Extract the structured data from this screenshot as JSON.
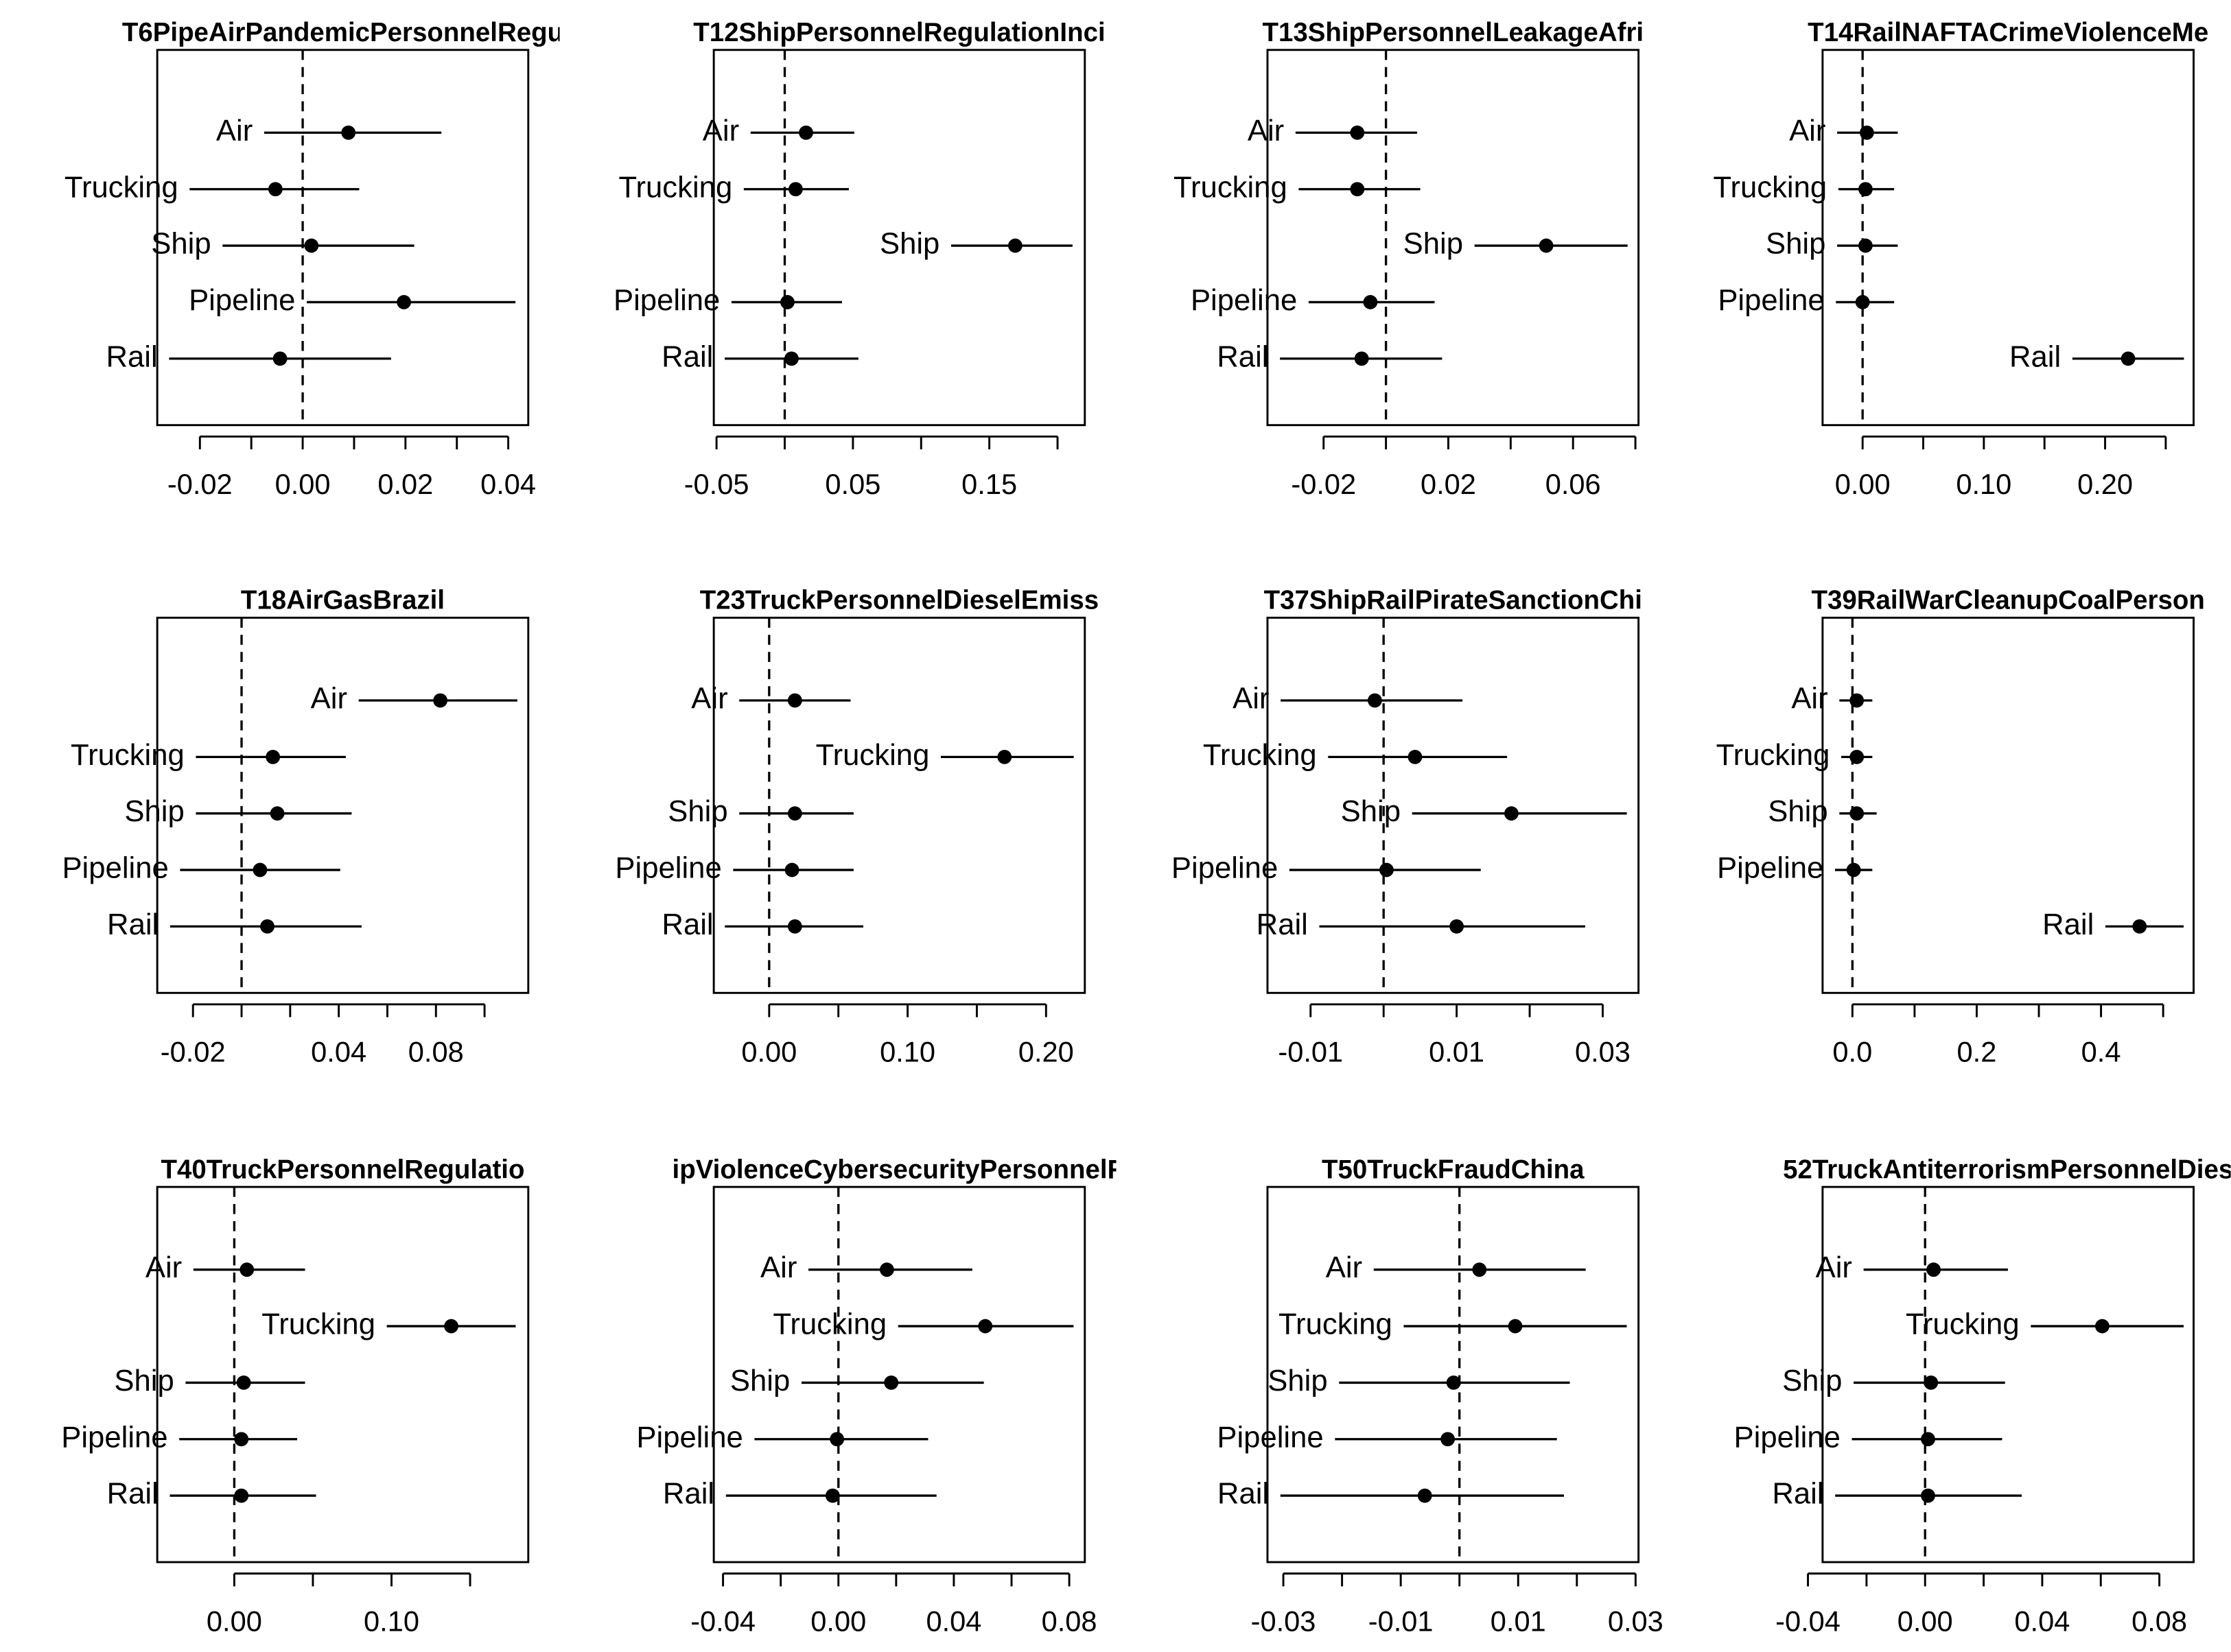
{
  "chart_data": [
    {
      "type": "dot",
      "title": "T6PipeAirPandemicPersonnelRegu",
      "categories": [
        "Air",
        "Trucking",
        "Ship",
        "Pipeline",
        "Rail"
      ],
      "values": [
        0.0089,
        -0.0053,
        0.0017,
        0.0197,
        -0.0044
      ],
      "ci_low": [
        -0.0075,
        -0.022,
        -0.0156,
        0.0008,
        -0.026
      ],
      "ci_high": [
        0.027,
        0.011,
        0.0217,
        0.0414,
        0.0172
      ],
      "xlim": [
        -0.0283,
        0.0439
      ],
      "xticks": [
        -0.02,
        {
          "value": 0,
          "label": "0.00"
        },
        0.02,
        0.04
      ],
      "xminorticks": [
        -0.01,
        0.01,
        0.03
      ],
      "reference_line": 0,
      "color": "#000000"
    },
    {
      "type": "dot",
      "title": "T12ShipPersonnelRegulationInci",
      "categories": [
        "Air",
        "Trucking",
        "Ship",
        "Pipeline",
        "Rail"
      ],
      "values": [
        0.0156,
        0.008,
        0.169,
        0.002,
        0.005
      ],
      "ci_low": [
        -0.025,
        -0.03,
        0.122,
        -0.039,
        -0.044
      ],
      "ci_high": [
        0.051,
        0.047,
        0.211,
        0.042,
        0.054
      ],
      "xlim": [
        -0.052,
        0.22
      ],
      "xticks": [
        -0.05,
        0.05,
        0.15
      ],
      "xminorticks": [
        0,
        0.1,
        0.2
      ],
      "reference_line": 0,
      "color": "#000000"
    },
    {
      "type": "dot",
      "title": "T13ShipPersonnelLeakageAfri",
      "categories": [
        "Air",
        "Trucking",
        "Ship",
        "Pipeline",
        "Rail"
      ],
      "values": [
        -0.0092,
        -0.0092,
        0.0514,
        -0.005,
        -0.0078
      ],
      "ci_low": [
        -0.029,
        -0.028,
        0.0284,
        -0.0248,
        -0.034
      ],
      "ci_high": [
        0.01,
        0.011,
        0.0775,
        0.0156,
        0.018
      ],
      "xlim": [
        -0.038,
        0.081
      ],
      "xticks": [
        -0.02,
        0.02,
        0.06
      ],
      "xminorticks": [
        0,
        0.04,
        0.08
      ],
      "reference_line": 0,
      "color": "#000000"
    },
    {
      "type": "dot",
      "title": "T14RailNAFTACrimeViolenceMe",
      "categories": [
        "Air",
        "Trucking",
        "Ship",
        "Pipeline",
        "Rail"
      ],
      "values": [
        0.0035,
        0.0024,
        0.0024,
        0,
        0.219
      ],
      "ci_low": [
        -0.021,
        -0.02,
        -0.021,
        -0.022,
        0.173
      ],
      "ci_high": [
        0.029,
        0.026,
        0.029,
        0.026,
        0.265
      ],
      "xlim": [
        -0.033,
        0.273
      ],
      "xticks": [
        {
          "value": 0,
          "label": "0.00"
        },
        {
          "value": 0.1,
          "label": "0.10"
        },
        {
          "value": 0.2,
          "label": "0.20"
        }
      ],
      "xminorticks": [
        0.05,
        0.15,
        0.25
      ],
      "reference_line": 0,
      "color": "#000000"
    },
    {
      "type": "dot",
      "title": "T18AirGasBrazil",
      "categories": [
        "Air",
        "Trucking",
        "Ship",
        "Pipeline",
        "Rail"
      ],
      "values": [
        0.0818,
        0.0129,
        0.0147,
        0.0076,
        0.0106
      ],
      "ci_low": [
        0.0482,
        -0.0188,
        -0.0188,
        -0.0253,
        -0.0294
      ],
      "ci_high": [
        0.1135,
        0.0429,
        0.0453,
        0.0406,
        0.0494
      ],
      "xlim": [
        -0.0347,
        0.118
      ],
      "xticks": [
        -0.02,
        0.04,
        0.08
      ],
      "xminorticks": [
        0,
        0.02,
        0.06,
        0.1
      ],
      "reference_line": 0,
      "color": "#000000"
    },
    {
      "type": "dot",
      "title": "T23TruckPersonnelDieselEmiss",
      "categories": [
        "Air",
        "Trucking",
        "Ship",
        "Pipeline",
        "Rail"
      ],
      "values": [
        0.0186,
        0.17,
        0.0186,
        0.0165,
        0.0186
      ],
      "ci_low": [
        -0.0216,
        0.124,
        -0.0216,
        -0.026,
        -0.032
      ],
      "ci_high": [
        0.0588,
        0.22,
        0.061,
        0.061,
        0.068
      ],
      "xlim": [
        -0.04,
        0.228
      ],
      "xticks": [
        {
          "value": 0,
          "label": "0.00"
        },
        {
          "value": 0.1,
          "label": "0.10"
        },
        {
          "value": 0.2,
          "label": "0.20"
        }
      ],
      "xminorticks": [
        0.05,
        0.15
      ],
      "reference_line": 0,
      "color": "#000000"
    },
    {
      "type": "dot",
      "title": "T37ShipRailPirateSanctionChi",
      "categories": [
        "Air",
        "Trucking",
        "Ship",
        "Pipeline",
        "Rail"
      ],
      "values": [
        -0.0012,
        0.0043,
        0.0175,
        0.0004,
        0.01
      ],
      "ci_low": [
        -0.0141,
        -0.0076,
        0.0039,
        -0.0129,
        -0.0088
      ],
      "ci_high": [
        0.0108,
        0.0169,
        0.0333,
        0.0133,
        0.0276
      ],
      "xlim": [
        -0.0159,
        0.0349
      ],
      "xticks": [
        -0.01,
        0.01,
        0.03
      ],
      "xminorticks": [
        0,
        0.02
      ],
      "reference_line": 0,
      "color": "#000000"
    },
    {
      "type": "dot",
      "title": "T39RailWarCleanupCoalPerson",
      "categories": [
        "Air",
        "Trucking",
        "Ship",
        "Pipeline",
        "Rail"
      ],
      "values": [
        0.007,
        0.007,
        0.007,
        0.002,
        0.462
      ],
      "ci_low": [
        -0.021,
        -0.018,
        -0.021,
        -0.028,
        0.407
      ],
      "ci_high": [
        0.032,
        0.032,
        0.039,
        0.032,
        0.533
      ],
      "xlim": [
        -0.048,
        0.549
      ],
      "xticks": [
        {
          "value": 0,
          "label": "0.0"
        },
        0.2,
        0.4
      ],
      "xminorticks": [
        0.1,
        0.3,
        0.5
      ],
      "reference_line": 0,
      "color": "#000000"
    },
    {
      "type": "dot",
      "title": "T40TruckPersonnelRegulatio",
      "categories": [
        "Air",
        "Trucking",
        "Ship",
        "Pipeline",
        "Rail"
      ],
      "values": [
        0.008,
        0.138,
        0.006,
        0.0045,
        0.0045
      ],
      "ci_low": [
        -0.026,
        0.097,
        -0.031,
        -0.035,
        -0.041
      ],
      "ci_high": [
        0.045,
        0.179,
        0.045,
        0.04,
        0.052
      ],
      "xlim": [
        -0.049,
        0.187
      ],
      "xticks": [
        {
          "value": 0,
          "label": "0.00"
        },
        {
          "value": 0.1,
          "label": "0.10"
        }
      ],
      "xminorticks": [
        0.05,
        0.15
      ],
      "reference_line": 0,
      "color": "#000000"
    },
    {
      "type": "dot",
      "title": "ipViolenceCybersecurityPersonnelR",
      "categories": [
        "Air",
        "Trucking",
        "Ship",
        "Pipeline",
        "Rail"
      ],
      "values": [
        0.0168,
        0.0509,
        0.0183,
        -0.0005,
        -0.002
      ],
      "ci_low": [
        -0.0104,
        0.0207,
        -0.0128,
        -0.0291,
        -0.039
      ],
      "ci_high": [
        0.0464,
        0.0815,
        0.0504,
        0.0311,
        0.034
      ],
      "xlim": [
        -0.0432,
        0.0854
      ],
      "xticks": [
        -0.04,
        {
          "value": 0,
          "label": "0.00"
        },
        0.04,
        0.08
      ],
      "xminorticks": [
        -0.02,
        0.02,
        0.06
      ],
      "reference_line": 0,
      "color": "#000000"
    },
    {
      "type": "dot",
      "title": "T50TruckFraudChina",
      "categories": [
        "Air",
        "Trucking",
        "Ship",
        "Pipeline",
        "Rail"
      ],
      "values": [
        0.0034,
        0.0095,
        -0.001,
        -0.002,
        -0.0059
      ],
      "ci_low": [
        -0.0146,
        -0.0095,
        -0.0205,
        -0.0212,
        -0.0305
      ],
      "ci_high": [
        0.0215,
        0.0285,
        0.0188,
        0.0166,
        0.0178
      ],
      "xlim": [
        -0.0327,
        0.0305
      ],
      "xticks": [
        -0.03,
        -0.01,
        0.01,
        0.03
      ],
      "xminorticks": [
        -0.02,
        0,
        0.02
      ],
      "reference_line": 0,
      "color": "#000000"
    },
    {
      "type": "dot",
      "title": "52TruckAntiterrorismPersonnelDies",
      "categories": [
        "Air",
        "Trucking",
        "Ship",
        "Pipeline",
        "Rail"
      ],
      "values": [
        0.0029,
        0.0605,
        0.002,
        0.001,
        0.001
      ],
      "ci_low": [
        -0.021,
        0.0361,
        -0.0244,
        -0.025,
        -0.0307
      ],
      "ci_high": [
        0.0283,
        0.0883,
        0.0273,
        0.0263,
        0.033
      ],
      "xlim": [
        -0.035,
        0.0917
      ],
      "xticks": [
        -0.04,
        {
          "value": 0,
          "label": "0.00"
        },
        0.04,
        0.08
      ],
      "xminorticks": [
        -0.02,
        0.02,
        0.06
      ],
      "reference_line": 0,
      "color": "#000000"
    }
  ]
}
